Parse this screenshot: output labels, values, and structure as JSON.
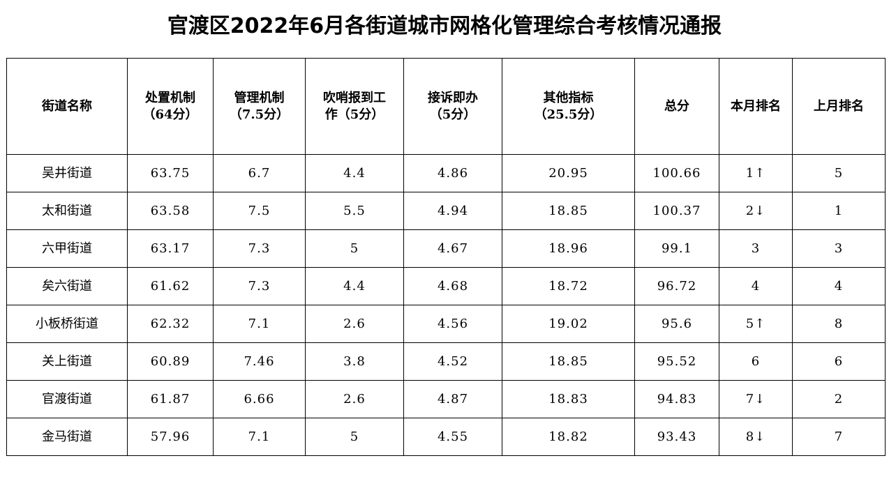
{
  "title": "官渡区2022年6月各街道城市网格化管理综合考核情况通报",
  "table": {
    "headers": [
      {
        "line1": "街道名称",
        "line2": ""
      },
      {
        "line1": "处置机制",
        "line2": "（64分）"
      },
      {
        "line1": "管理机制",
        "line2": "（7.5分）"
      },
      {
        "line1": "吹哨报到工",
        "line2": "作（5分）"
      },
      {
        "line1": "接诉即办",
        "line2": "（5分）"
      },
      {
        "line1": "其他指标",
        "line2": "（25.5分）"
      },
      {
        "line1": "总分",
        "line2": ""
      },
      {
        "line1": "本月排名",
        "line2": ""
      },
      {
        "line1": "上月排名",
        "line2": ""
      }
    ],
    "rows": [
      [
        "吴井街道",
        "63.75",
        "6.7",
        "4.4",
        "4.86",
        "20.95",
        "100.66",
        "1↑",
        "5"
      ],
      [
        "太和街道",
        "63.58",
        "7.5",
        "5.5",
        "4.94",
        "18.85",
        "100.37",
        "2↓",
        "1"
      ],
      [
        "六甲街道",
        "63.17",
        "7.3",
        "5",
        "4.67",
        "18.96",
        "99.1",
        "3",
        "3"
      ],
      [
        "矣六街道",
        "61.62",
        "7.3",
        "4.4",
        "4.68",
        "18.72",
        "96.72",
        "4",
        "4"
      ],
      [
        "小板桥街道",
        "62.32",
        "7.1",
        "2.6",
        "4.56",
        "19.02",
        "95.6",
        "5↑",
        "8"
      ],
      [
        "关上街道",
        "60.89",
        "7.46",
        "3.8",
        "4.52",
        "18.85",
        "95.52",
        "6",
        "6"
      ],
      [
        "官渡街道",
        "61.87",
        "6.66",
        "2.6",
        "4.87",
        "18.83",
        "94.83",
        "7↓",
        "2"
      ],
      [
        "金马街道",
        "57.96",
        "7.1",
        "5",
        "4.55",
        "18.82",
        "93.43",
        "8↓",
        "7"
      ]
    ]
  }
}
